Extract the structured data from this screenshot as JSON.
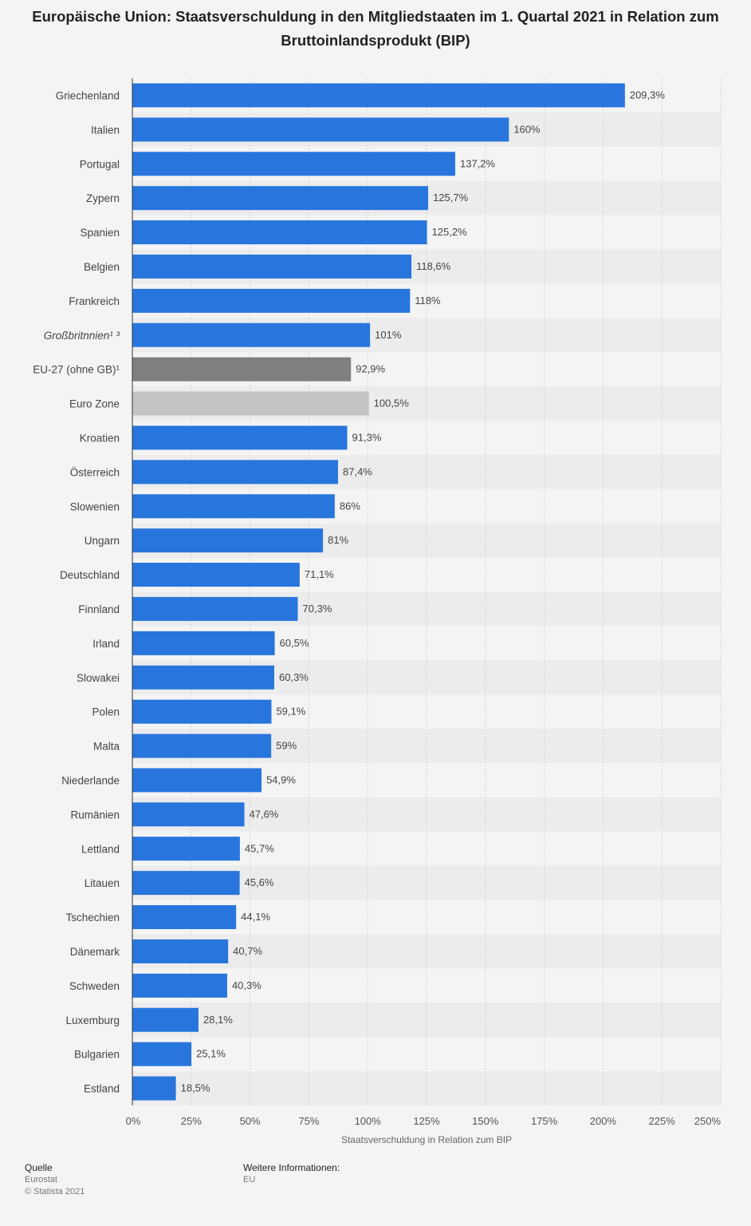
{
  "chart_data": {
    "type": "bar",
    "orientation": "horizontal",
    "title": "Europäische Union: Staatsverschuldung in den Mitgliedstaaten im 1. Quartal 2021 in Relation zum Bruttoinlandsprodukt (BIP)",
    "xlabel": "Staatsverschuldung in Relation zum BIP",
    "ylabel": "",
    "xlim": [
      0,
      250
    ],
    "xticks": [
      "0%",
      "25%",
      "50%",
      "75%",
      "100%",
      "125%",
      "150%",
      "175%",
      "200%",
      "225%",
      "250%"
    ],
    "grid": "vertical dashed",
    "categories": [
      "Griechenland",
      "Italien",
      "Portugal",
      "Zypern",
      "Spanien",
      "Belgien",
      "Frankreich",
      "Großbritnnien¹ ³",
      "EU-27 (ohne GB)¹",
      "Euro Zone",
      "Kroatien",
      "Österreich",
      "Slowenien",
      "Ungarn",
      "Deutschland",
      "Finnland",
      "Irland",
      "Slowakei",
      "Polen",
      "Malta",
      "Niederlande",
      "Rumänien",
      "Lettland",
      "Litauen",
      "Tschechien",
      "Dänemark",
      "Schweden",
      "Luxemburg",
      "Bulgarien",
      "Estland"
    ],
    "values": [
      209.3,
      160,
      137.2,
      125.7,
      125.2,
      118.6,
      118,
      101,
      92.9,
      100.5,
      91.3,
      87.4,
      86,
      81,
      71.1,
      70.3,
      60.5,
      60.3,
      59.1,
      59,
      54.9,
      47.6,
      45.7,
      45.6,
      44.1,
      40.7,
      40.3,
      28.1,
      25.1,
      18.5
    ],
    "value_labels": [
      "209,3%",
      "160%",
      "137,2%",
      "125,7%",
      "125,2%",
      "118,6%",
      "118%",
      "101%",
      "92,9%",
      "100,5%",
      "91,3%",
      "87,4%",
      "86%",
      "81%",
      "71,1%",
      "70,3%",
      "60,5%",
      "60,3%",
      "59,1%",
      "59%",
      "54,9%",
      "47,6%",
      "45,7%",
      "45,6%",
      "44,1%",
      "40,7%",
      "40,3%",
      "28,1%",
      "25,1%",
      "18,5%"
    ],
    "italic_categories": [
      7
    ],
    "bar_colors": {
      "default": "#2876dd",
      "EU-27 (ohne GB)¹": "#7f7f7f",
      "Euro Zone": "#c3c3c3"
    }
  },
  "footer": {
    "source_heading": "Quelle",
    "source_lines": [
      "Eurostat",
      "© Statista 2021"
    ],
    "info_heading": "Weitere Informationen:",
    "info_lines": [
      "EU"
    ]
  }
}
